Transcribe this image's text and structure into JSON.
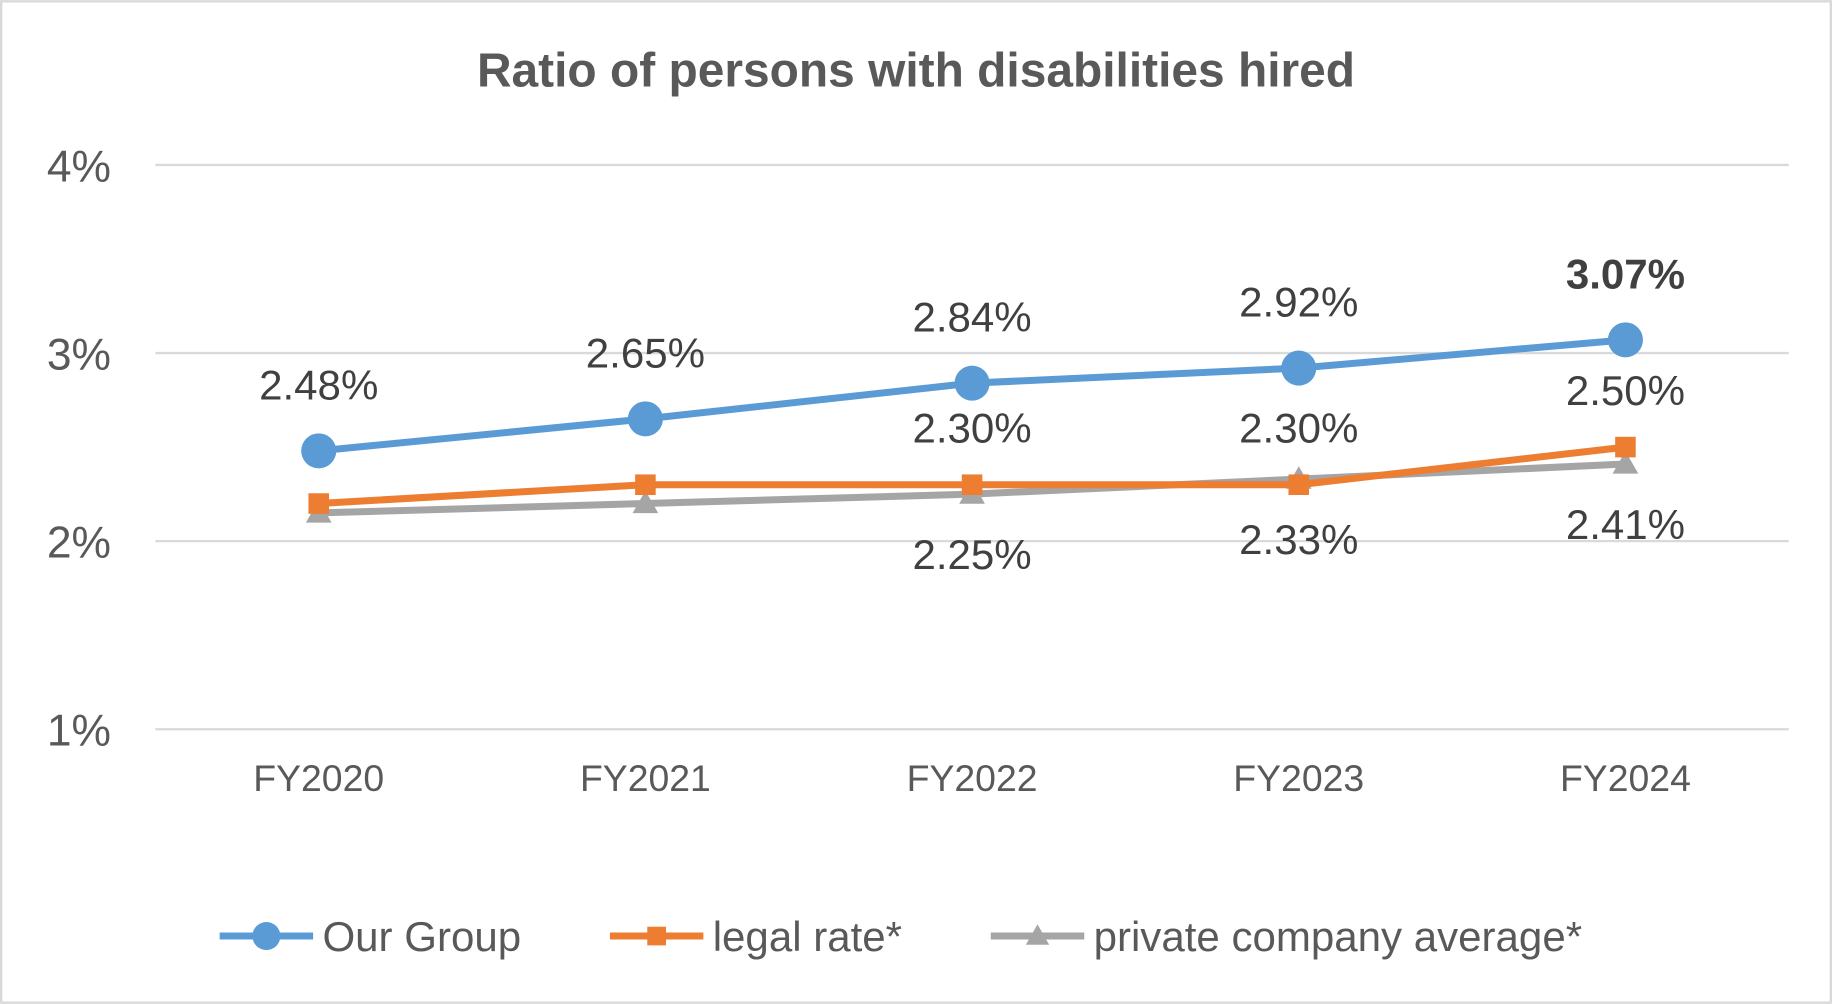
{
  "chart_data": {
    "type": "line",
    "title": "Ratio of persons with disabilities hired",
    "categories": [
      "FY2020",
      "FY2021",
      "FY2022",
      "FY2023",
      "FY2024"
    ],
    "ylim": [
      1,
      4
    ],
    "yticks": [
      "1%",
      "2%",
      "3%",
      "4%"
    ],
    "ytick_values": [
      1,
      2,
      3,
      4
    ],
    "grid": true,
    "legend_position": "bottom",
    "series": [
      {
        "name": "Our Group",
        "color": "#5B9BD5",
        "marker": "circle",
        "values": [
          2.48,
          2.65,
          2.84,
          2.92,
          3.07
        ],
        "labels": [
          "2.48%",
          "2.65%",
          "2.84%",
          "2.92%",
          "3.07%"
        ],
        "bold_last_label": true
      },
      {
        "name": "legal rate*",
        "color": "#ED7D31",
        "marker": "square",
        "values": [
          2.2,
          2.3,
          2.3,
          2.3,
          2.5
        ],
        "labels": [
          null,
          null,
          "2.30%",
          "2.30%",
          "2.50%"
        ]
      },
      {
        "name": "private company average*",
        "color": "#A5A5A5",
        "marker": "triangle",
        "values": [
          2.15,
          2.2,
          2.25,
          2.33,
          2.41
        ],
        "labels": [
          null,
          null,
          "2.25%",
          "2.33%",
          "2.41%"
        ]
      }
    ]
  }
}
